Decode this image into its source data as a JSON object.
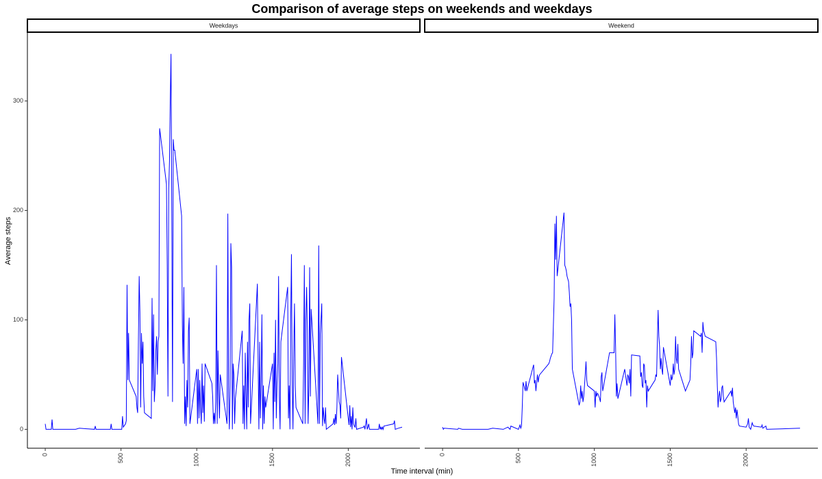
{
  "chart_data": {
    "type": "line",
    "title": "Comparison of average steps on weekends and weekdays",
    "x_label": "Time interval (min)",
    "y_label": "Average steps",
    "xlim": [
      -117.75,
      2472.75
    ],
    "ylim": [
      -17.25,
      362.25
    ],
    "xticks": [
      0,
      500,
      1000,
      1500,
      2000
    ],
    "yticks": [
      0,
      100,
      200,
      300
    ],
    "grid": false,
    "facets": [
      {
        "name": "Weekdays",
        "color": "#0000ff",
        "x": [
          0,
          5,
          40,
          45,
          50,
          200,
          225,
          325,
          330,
          335,
          430,
          435,
          440,
          505,
          510,
          515,
          530,
          535,
          540,
          545,
          550,
          555,
          600,
          605,
          610,
          615,
          620,
          625,
          630,
          635,
          640,
          645,
          650,
          655,
          700,
          705,
          710,
          715,
          720,
          725,
          730,
          735,
          740,
          745,
          750,
          755,
          800,
          805,
          810,
          815,
          820,
          825,
          830,
          835,
          840,
          845,
          850,
          855,
          900,
          905,
          910,
          915,
          920,
          925,
          930,
          935,
          940,
          945,
          950,
          955,
          1000,
          1005,
          1010,
          1015,
          1020,
          1025,
          1030,
          1035,
          1040,
          1045,
          1050,
          1055,
          1100,
          1105,
          1110,
          1115,
          1120,
          1125,
          1130,
          1135,
          1140,
          1145,
          1150,
          1155,
          1200,
          1205,
          1210,
          1215,
          1220,
          1225,
          1230,
          1235,
          1240,
          1245,
          1250,
          1255,
          1300,
          1305,
          1310,
          1315,
          1320,
          1325,
          1330,
          1335,
          1340,
          1345,
          1350,
          1355,
          1400,
          1405,
          1410,
          1415,
          1420,
          1425,
          1430,
          1435,
          1440,
          1445,
          1450,
          1455,
          1500,
          1505,
          1510,
          1515,
          1520,
          1525,
          1530,
          1535,
          1540,
          1545,
          1550,
          1555,
          1600,
          1605,
          1610,
          1615,
          1620,
          1625,
          1630,
          1635,
          1640,
          1645,
          1650,
          1655,
          1700,
          1705,
          1710,
          1715,
          1720,
          1725,
          1730,
          1735,
          1740,
          1745,
          1750,
          1755,
          1800,
          1805,
          1810,
          1815,
          1820,
          1825,
          1830,
          1835,
          1840,
          1845,
          1850,
          1855,
          1900,
          1905,
          1910,
          1915,
          1920,
          1925,
          1930,
          1935,
          1940,
          1945,
          1950,
          1955,
          2000,
          2005,
          2010,
          2015,
          2020,
          2025,
          2030,
          2035,
          2040,
          2045,
          2050,
          2055,
          2100,
          2105,
          2110,
          2115,
          2120,
          2125,
          2130,
          2135,
          2140,
          2200,
          2205,
          2210,
          2215,
          2220,
          2225,
          2230,
          2235,
          2300,
          2305,
          2310,
          2330,
          2355
        ],
        "values": [
          5,
          0,
          0,
          9,
          0,
          0,
          1,
          0,
          3,
          0,
          0,
          5,
          0,
          0,
          12,
          2,
          5,
          8,
          132,
          45,
          88,
          45,
          30,
          20,
          15,
          82,
          140,
          107,
          20,
          88,
          60,
          80,
          30,
          15,
          10,
          120,
          35,
          105,
          25,
          40,
          72,
          85,
          50,
          80,
          85,
          275,
          224,
          150,
          30,
          220,
          245,
          300,
          343,
          200,
          25,
          265,
          255,
          255,
          195,
          95,
          60,
          130,
          5,
          30,
          3,
          45,
          20,
          90,
          102,
          5,
          55,
          5,
          55,
          10,
          45,
          20,
          5,
          60,
          15,
          40,
          7,
          60,
          42,
          30,
          5,
          15,
          5,
          25,
          150,
          5,
          72,
          35,
          10,
          50,
          5,
          197,
          30,
          0,
          40,
          170,
          148,
          0,
          60,
          50,
          5,
          28,
          90,
          5,
          40,
          0,
          70,
          30,
          0,
          80,
          20,
          100,
          115,
          5,
          133,
          60,
          0,
          80,
          10,
          45,
          105,
          0,
          40,
          5,
          30,
          20,
          60,
          0,
          70,
          25,
          100,
          10,
          42,
          60,
          140,
          30,
          0,
          80,
          130,
          10,
          40,
          0,
          100,
          160,
          45,
          0,
          70,
          115,
          40,
          20,
          5,
          60,
          150,
          5,
          100,
          130,
          90,
          5,
          40,
          148,
          30,
          110,
          5,
          168,
          5,
          87,
          100,
          115,
          3,
          20,
          10,
          5,
          20,
          0,
          5,
          10,
          4,
          14,
          5,
          20,
          50,
          37,
          25,
          22,
          10,
          66,
          10,
          4,
          22,
          2,
          12,
          0,
          20,
          5,
          3,
          2,
          10,
          0,
          2,
          3,
          0,
          5,
          10,
          0,
          2,
          5,
          0,
          0,
          5,
          0,
          2,
          0,
          2,
          0,
          3,
          5,
          8,
          0,
          1,
          2
        ]
      },
      {
        "name": "Weekend",
        "color": "#0000ff",
        "x": [
          0,
          5,
          10,
          100,
          105,
          130,
          300,
          330,
          400,
          430,
          445,
          450,
          500,
          510,
          515,
          520,
          525,
          530,
          540,
          545,
          550,
          555,
          600,
          605,
          610,
          615,
          620,
          625,
          630,
          635,
          640,
          700,
          705,
          710,
          720,
          725,
          735,
          740,
          745,
          750,
          755,
          800,
          805,
          810,
          815,
          820,
          830,
          835,
          840,
          845,
          850,
          855,
          900,
          905,
          910,
          915,
          920,
          925,
          930,
          940,
          945,
          950,
          955,
          1000,
          1005,
          1010,
          1015,
          1020,
          1025,
          1030,
          1035,
          1040,
          1045,
          1050,
          1055,
          1100,
          1130,
          1135,
          1140,
          1145,
          1150,
          1155,
          1200,
          1205,
          1210,
          1215,
          1220,
          1225,
          1230,
          1235,
          1240,
          1245,
          1300,
          1305,
          1310,
          1315,
          1320,
          1325,
          1330,
          1335,
          1340,
          1345,
          1350,
          1355,
          1400,
          1405,
          1410,
          1415,
          1420,
          1425,
          1430,
          1435,
          1440,
          1445,
          1450,
          1455,
          1500,
          1505,
          1510,
          1515,
          1520,
          1525,
          1530,
          1535,
          1540,
          1545,
          1550,
          1555,
          1600,
          1630,
          1635,
          1640,
          1645,
          1650,
          1655,
          1700,
          1705,
          1710,
          1715,
          1720,
          1725,
          1730,
          1800,
          1805,
          1810,
          1815,
          1820,
          1825,
          1830,
          1835,
          1840,
          1845,
          1850,
          1855,
          1900,
          1905,
          1910,
          1915,
          1920,
          1925,
          1930,
          1935,
          1940,
          1945,
          1950,
          1955,
          2000,
          2010,
          2015,
          2020,
          2030,
          2040,
          2045,
          2050,
          2100,
          2105,
          2110,
          2130,
          2135,
          2355
        ],
        "values": [
          2,
          0,
          1,
          0,
          1,
          0,
          0,
          1,
          0,
          2,
          0,
          3,
          0,
          4,
          1,
          3,
          20,
          43,
          38,
          35,
          44,
          35,
          59,
          42,
          45,
          35,
          43,
          50,
          43,
          48,
          50,
          60,
          62,
          65,
          69,
          70,
          120,
          188,
          155,
          195,
          140,
          198,
          150,
          148,
          145,
          140,
          135,
          125,
          112,
          115,
          100,
          55,
          22,
          25,
          40,
          28,
          35,
          25,
          30,
          50,
          62,
          45,
          40,
          35,
          20,
          35,
          30,
          33,
          32,
          30,
          28,
          25,
          48,
          52,
          35,
          70,
          70,
          105,
          75,
          30,
          42,
          28,
          55,
          50,
          45,
          40,
          50,
          48,
          42,
          55,
          30,
          68,
          67,
          48,
          52,
          40,
          38,
          60,
          58,
          42,
          45,
          20,
          40,
          35,
          45,
          50,
          48,
          80,
          109,
          85,
          75,
          55,
          65,
          55,
          50,
          75,
          40,
          50,
          45,
          48,
          60,
          50,
          55,
          85,
          65,
          60,
          78,
          55,
          35,
          45,
          60,
          85,
          65,
          70,
          90,
          85,
          88,
          70,
          98,
          90,
          88,
          85,
          80,
          65,
          40,
          20,
          30,
          35,
          25,
          28,
          38,
          40,
          30,
          25,
          35,
          30,
          38,
          25,
          20,
          15,
          20,
          10,
          18,
          12,
          5,
          3,
          2,
          5,
          10,
          2,
          0,
          6,
          4,
          3,
          2,
          4,
          1,
          3,
          0,
          1
        ]
      }
    ]
  }
}
